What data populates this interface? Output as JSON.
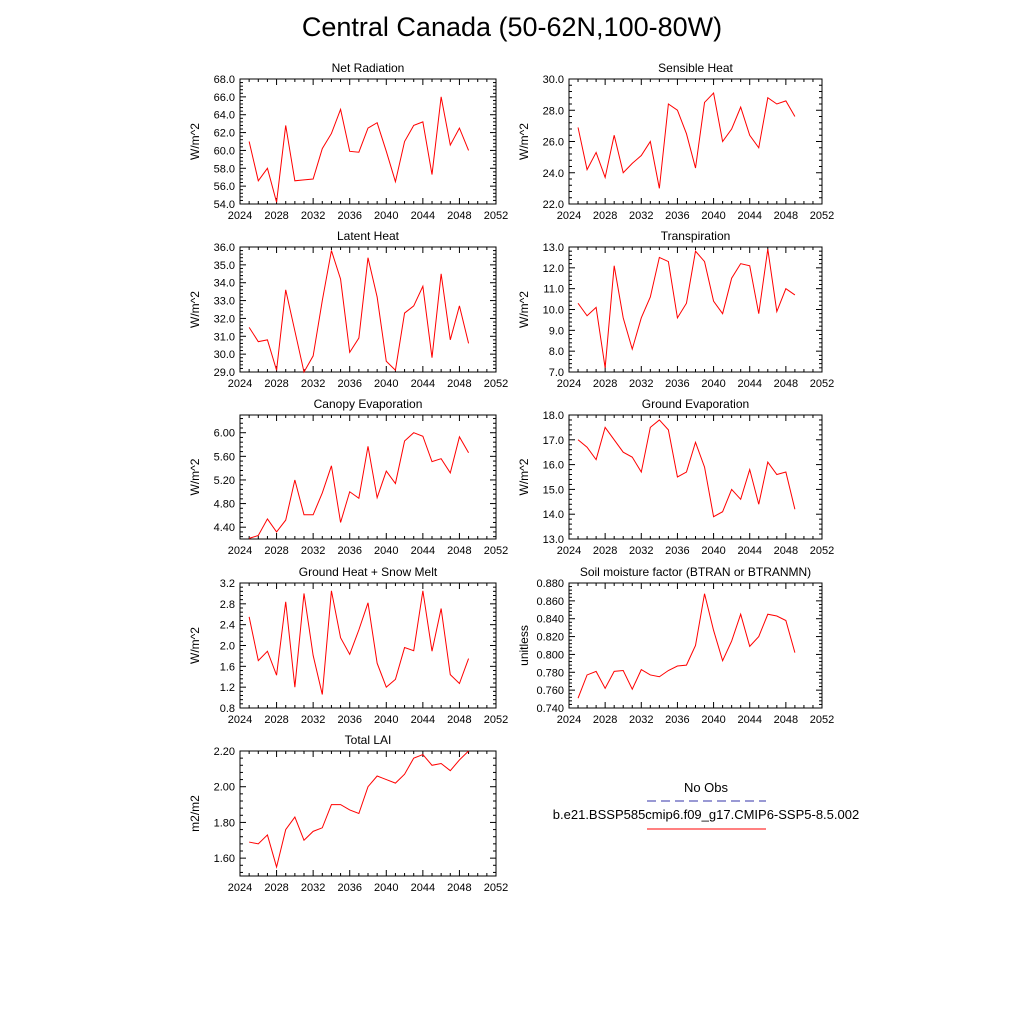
{
  "page": {
    "title": "Central Canada (50-62N,100-80W)"
  },
  "legend": {
    "obs_label": "No Obs",
    "model_label": "b.e21.BSSP585cmip6.f09_g17.CMIP6-SSP5-8.5.002",
    "obs_color": "#3333aa",
    "model_color": "#ff0000"
  },
  "chart_data": [
    {
      "type": "line",
      "title": "Net Radiation",
      "ylabel": "W/m^2",
      "xlim": [
        2024,
        2052
      ],
      "ylim": [
        54,
        68
      ],
      "xticks": [
        2024,
        2028,
        2032,
        2036,
        2040,
        2044,
        2048,
        2052
      ],
      "yticks": [
        54,
        56,
        58,
        60,
        62,
        64,
        66,
        68
      ],
      "ydecimals": 1,
      "series": [
        {
          "color": "#ff0000",
          "x": [
            2025,
            2026,
            2027,
            2028,
            2029,
            2030,
            2031,
            2032,
            2033,
            2034,
            2035,
            2036,
            2037,
            2038,
            2039,
            2040,
            2041,
            2042,
            2043,
            2044,
            2045,
            2046,
            2047,
            2048,
            2049
          ],
          "y": [
            61.0,
            56.6,
            58.0,
            54.2,
            62.8,
            56.6,
            56.7,
            56.8,
            60.2,
            61.9,
            64.6,
            59.9,
            59.8,
            62.5,
            63.1,
            59.9,
            56.5,
            61.0,
            62.8,
            63.2,
            57.3,
            66.0,
            60.6,
            62.5,
            60.0
          ]
        }
      ]
    },
    {
      "type": "line",
      "title": "Sensible Heat",
      "ylabel": "W/m^2",
      "xlim": [
        2024,
        2052
      ],
      "ylim": [
        22,
        30
      ],
      "xticks": [
        2024,
        2028,
        2032,
        2036,
        2040,
        2044,
        2048,
        2052
      ],
      "yticks": [
        22,
        24,
        26,
        28,
        30
      ],
      "ydecimals": 1,
      "series": [
        {
          "color": "#ff0000",
          "x": [
            2025,
            2026,
            2027,
            2028,
            2029,
            2030,
            2031,
            2032,
            2033,
            2034,
            2035,
            2036,
            2037,
            2038,
            2039,
            2040,
            2041,
            2042,
            2043,
            2044,
            2045,
            2046,
            2047,
            2048,
            2049
          ],
          "y": [
            26.9,
            24.2,
            25.3,
            23.7,
            26.4,
            24.0,
            24.6,
            25.1,
            26.0,
            23.0,
            28.4,
            28.0,
            26.5,
            24.3,
            28.5,
            29.1,
            26.0,
            26.8,
            28.2,
            26.4,
            25.6,
            28.8,
            28.4,
            28.6,
            27.6
          ]
        }
      ]
    },
    {
      "type": "line",
      "title": "Latent Heat",
      "ylabel": "W/m^2",
      "xlim": [
        2024,
        2052
      ],
      "ylim": [
        29,
        36
      ],
      "xticks": [
        2024,
        2028,
        2032,
        2036,
        2040,
        2044,
        2048,
        2052
      ],
      "yticks": [
        29,
        30,
        31,
        32,
        33,
        34,
        35,
        36
      ],
      "ydecimals": 1,
      "series": [
        {
          "color": "#ff0000",
          "x": [
            2025,
            2026,
            2027,
            2028,
            2029,
            2030,
            2031,
            2032,
            2033,
            2034,
            2035,
            2036,
            2037,
            2038,
            2039,
            2040,
            2041,
            2042,
            2043,
            2044,
            2045,
            2046,
            2047,
            2048,
            2049
          ],
          "y": [
            31.5,
            30.7,
            30.8,
            29.1,
            33.6,
            31.3,
            29.0,
            29.9,
            33.0,
            35.8,
            34.2,
            30.1,
            30.9,
            35.4,
            33.2,
            29.6,
            29.1,
            32.3,
            32.7,
            33.8,
            29.8,
            34.5,
            30.8,
            32.7,
            30.6
          ]
        }
      ]
    },
    {
      "type": "line",
      "title": "Transpiration",
      "ylabel": "W/m^2",
      "xlim": [
        2024,
        2052
      ],
      "ylim": [
        7,
        13
      ],
      "xticks": [
        2024,
        2028,
        2032,
        2036,
        2040,
        2044,
        2048,
        2052
      ],
      "yticks": [
        7,
        8,
        9,
        10,
        11,
        12,
        13
      ],
      "ydecimals": 1,
      "series": [
        {
          "color": "#ff0000",
          "x": [
            2025,
            2026,
            2027,
            2028,
            2029,
            2030,
            2031,
            2032,
            2033,
            2034,
            2035,
            2036,
            2037,
            2038,
            2039,
            2040,
            2041,
            2042,
            2043,
            2044,
            2045,
            2046,
            2047,
            2048,
            2049
          ],
          "y": [
            10.3,
            9.7,
            10.1,
            7.2,
            12.1,
            9.6,
            8.1,
            9.6,
            10.6,
            12.5,
            12.3,
            9.6,
            10.3,
            12.8,
            12.3,
            10.4,
            9.8,
            11.5,
            12.2,
            12.1,
            9.8,
            12.9,
            9.9,
            11.0,
            10.7
          ]
        }
      ]
    },
    {
      "type": "line",
      "title": "Canopy Evaporation",
      "ylabel": "W/m^2",
      "xlim": [
        2024,
        2052
      ],
      "ylim": [
        4.2,
        6.3
      ],
      "xticks": [
        2024,
        2028,
        2032,
        2036,
        2040,
        2044,
        2048,
        2052
      ],
      "yticks": [
        4.4,
        4.8,
        5.2,
        5.6,
        6.0
      ],
      "ydecimals": 2,
      "series": [
        {
          "color": "#ff0000",
          "x": [
            2025,
            2026,
            2027,
            2028,
            2029,
            2030,
            2031,
            2032,
            2033,
            2034,
            2035,
            2036,
            2037,
            2038,
            2039,
            2040,
            2041,
            2042,
            2043,
            2044,
            2045,
            2046,
            2047,
            2048,
            2049
          ],
          "y": [
            4.21,
            4.26,
            4.54,
            4.32,
            4.52,
            5.2,
            4.61,
            4.61,
            4.98,
            5.44,
            4.48,
            5.0,
            4.89,
            5.77,
            4.9,
            5.35,
            5.14,
            5.86,
            6.0,
            5.94,
            5.51,
            5.56,
            5.32,
            5.93,
            5.66
          ]
        }
      ]
    },
    {
      "type": "line",
      "title": "Ground Evaporation",
      "ylabel": "W/m^2",
      "xlim": [
        2024,
        2052
      ],
      "ylim": [
        13,
        18
      ],
      "xticks": [
        2024,
        2028,
        2032,
        2036,
        2040,
        2044,
        2048,
        2052
      ],
      "yticks": [
        13,
        14,
        15,
        16,
        17,
        18
      ],
      "ydecimals": 1,
      "series": [
        {
          "color": "#ff0000",
          "x": [
            2025,
            2026,
            2027,
            2028,
            2029,
            2030,
            2031,
            2032,
            2033,
            2034,
            2035,
            2036,
            2037,
            2038,
            2039,
            2040,
            2041,
            2042,
            2043,
            2044,
            2045,
            2046,
            2047,
            2048,
            2049
          ],
          "y": [
            17.0,
            16.7,
            16.2,
            17.5,
            17.0,
            16.5,
            16.3,
            15.7,
            17.5,
            17.8,
            17.4,
            15.5,
            15.7,
            16.9,
            15.9,
            13.9,
            14.1,
            15.0,
            14.6,
            15.8,
            14.4,
            16.1,
            15.6,
            15.7,
            14.2
          ]
        }
      ]
    },
    {
      "type": "line",
      "title": "Ground Heat + Snow Melt",
      "ylabel": "W/m^2",
      "xlim": [
        2024,
        2052
      ],
      "ylim": [
        0.8,
        3.2
      ],
      "xticks": [
        2024,
        2028,
        2032,
        2036,
        2040,
        2044,
        2048,
        2052
      ],
      "yticks": [
        0.8,
        1.2,
        1.6,
        2.0,
        2.4,
        2.8,
        3.2
      ],
      "ydecimals": 1,
      "series": [
        {
          "color": "#ff0000",
          "x": [
            2025,
            2026,
            2027,
            2028,
            2029,
            2030,
            2031,
            2032,
            2033,
            2034,
            2035,
            2036,
            2037,
            2038,
            2039,
            2040,
            2041,
            2042,
            2043,
            2044,
            2045,
            2046,
            2047,
            2048,
            2049
          ],
          "y": [
            2.55,
            1.71,
            1.89,
            1.43,
            2.84,
            1.2,
            3.0,
            1.81,
            1.06,
            3.05,
            2.15,
            1.83,
            2.3,
            2.82,
            1.66,
            1.2,
            1.35,
            1.96,
            1.9,
            3.05,
            1.89,
            2.71,
            1.44,
            1.27,
            1.75
          ]
        }
      ]
    },
    {
      "type": "line",
      "title": "Soil moisture factor (BTRAN or BTRANMN)",
      "ylabel": "unitless",
      "xlim": [
        2024,
        2052
      ],
      "ylim": [
        0.74,
        0.88
      ],
      "xticks": [
        2024,
        2028,
        2032,
        2036,
        2040,
        2044,
        2048,
        2052
      ],
      "yticks": [
        0.74,
        0.76,
        0.78,
        0.8,
        0.82,
        0.84,
        0.86,
        0.88
      ],
      "ydecimals": 3,
      "series": [
        {
          "color": "#ff0000",
          "x": [
            2025,
            2026,
            2027,
            2028,
            2029,
            2030,
            2031,
            2032,
            2033,
            2034,
            2035,
            2036,
            2037,
            2038,
            2039,
            2040,
            2041,
            2042,
            2043,
            2044,
            2045,
            2046,
            2047,
            2048,
            2049
          ],
          "y": [
            0.751,
            0.777,
            0.781,
            0.762,
            0.781,
            0.782,
            0.761,
            0.783,
            0.777,
            0.775,
            0.782,
            0.787,
            0.788,
            0.81,
            0.868,
            0.827,
            0.793,
            0.815,
            0.845,
            0.809,
            0.82,
            0.845,
            0.843,
            0.838,
            0.802
          ]
        }
      ]
    },
    {
      "type": "line",
      "title": "Total LAI",
      "ylabel": "m2/m2",
      "xlim": [
        2024,
        2052
      ],
      "ylim": [
        1.5,
        2.2
      ],
      "xticks": [
        2024,
        2028,
        2032,
        2036,
        2040,
        2044,
        2048,
        2052
      ],
      "yticks": [
        1.6,
        1.8,
        2.0,
        2.2
      ],
      "ydecimals": 2,
      "series": [
        {
          "color": "#ff0000",
          "x": [
            2025,
            2026,
            2027,
            2028,
            2029,
            2030,
            2031,
            2032,
            2033,
            2034,
            2035,
            2036,
            2037,
            2038,
            2039,
            2040,
            2041,
            2042,
            2043,
            2044,
            2045,
            2046,
            2047,
            2048,
            2049
          ],
          "y": [
            1.69,
            1.68,
            1.73,
            1.55,
            1.76,
            1.83,
            1.7,
            1.75,
            1.77,
            1.9,
            1.9,
            1.87,
            1.85,
            2.0,
            2.06,
            2.04,
            2.02,
            2.07,
            2.16,
            2.18,
            2.12,
            2.13,
            2.09,
            2.15,
            2.2
          ]
        }
      ]
    }
  ]
}
